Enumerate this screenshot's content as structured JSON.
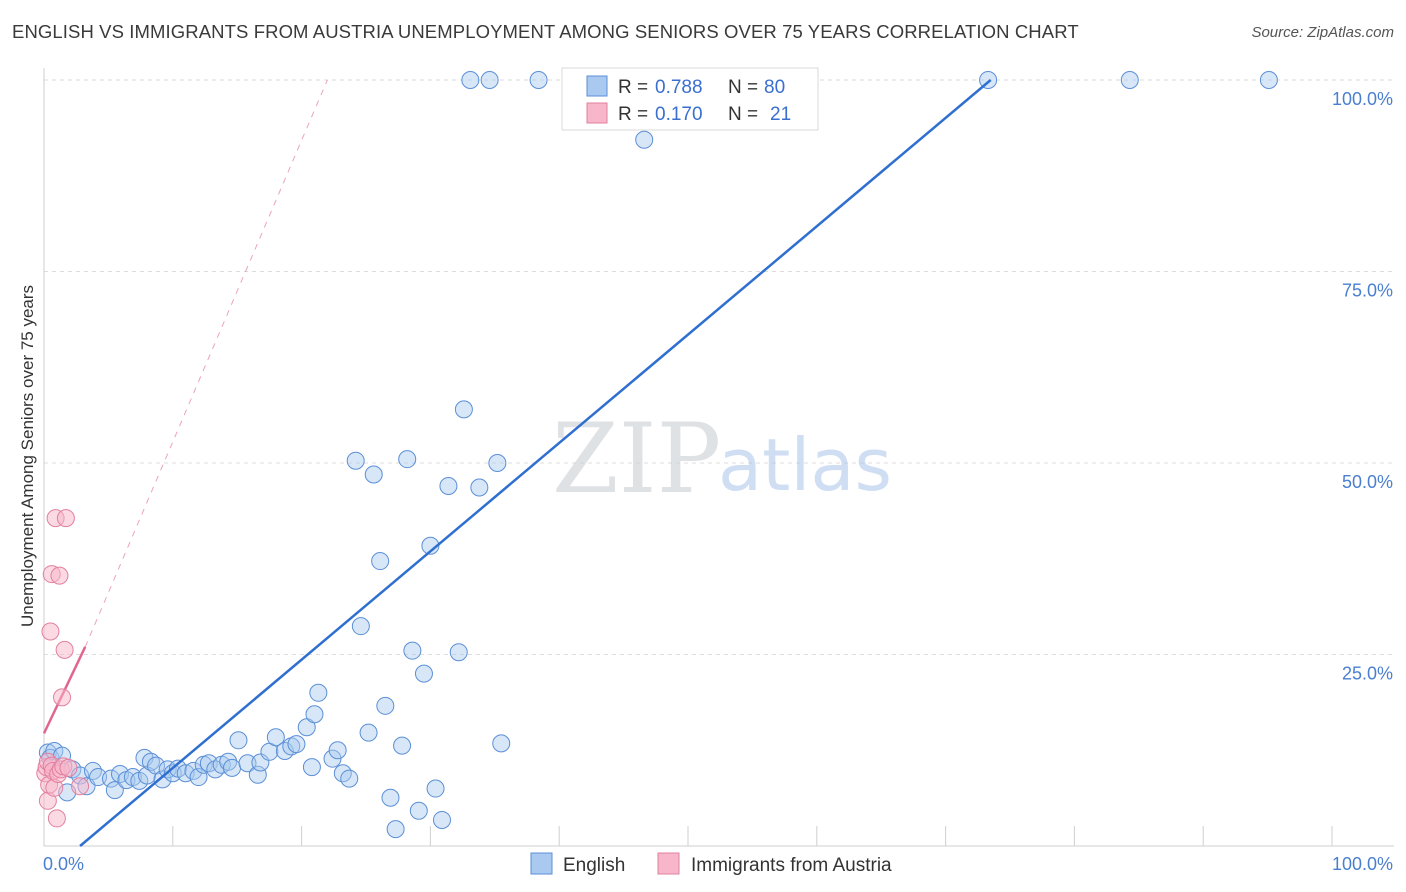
{
  "header": {
    "title": "ENGLISH VS IMMIGRANTS FROM AUSTRIA UNEMPLOYMENT AMONG SENIORS OVER 75 YEARS CORRELATION CHART",
    "source": "Source: ZipAtlas.com"
  },
  "watermark": {
    "zip": "ZIP",
    "atlas": "atlas"
  },
  "legend": {
    "r_label": "R =",
    "n_label": "N =",
    "english": {
      "r": "0.788",
      "n": "80"
    },
    "austria": {
      "r": "0.170",
      "n": "21"
    }
  },
  "bottom_legend": {
    "english": "English",
    "austria": "Immigrants from Austria"
  },
  "colors": {
    "english_fill": "#a9c9f0",
    "english_stroke": "#5b8fd6",
    "english_line": "#2f6fd0",
    "austria_fill": "#f7b6c9",
    "austria_stroke": "#e2809f",
    "austria_line": "#e0668e",
    "grid": "#dcdcdc"
  },
  "chart_data": {
    "type": "scatter",
    "title": "ENGLISH VS IMMIGRANTS FROM AUSTRIA UNEMPLOYMENT AMONG SENIORS OVER 75 YEARS CORRELATION CHART",
    "xlabel": "",
    "ylabel": "Unemployment Among Seniors over 75 years",
    "xlim": [
      0,
      100
    ],
    "ylim": [
      0,
      100
    ],
    "x_tick_labels": [
      "0.0%",
      "100.0%"
    ],
    "y_ticks": [
      25,
      50,
      75,
      100
    ],
    "y_tick_labels": [
      "25.0%",
      "50.0%",
      "75.0%",
      "100.0%"
    ],
    "grid": true,
    "legend_position": "top-center",
    "series": [
      {
        "name": "English",
        "r": 0.788,
        "n": 80,
        "trendline": {
          "x": [
            2.8,
            73.5
          ],
          "y": [
            0,
            100
          ]
        },
        "points": [
          [
            0.3,
            12.2
          ],
          [
            0.5,
            11.5
          ],
          [
            0.8,
            12.4
          ],
          [
            1.4,
            11.8
          ],
          [
            1.8,
            7.0
          ],
          [
            2.2,
            10.0
          ],
          [
            2.8,
            9.2
          ],
          [
            3.3,
            7.8
          ],
          [
            3.8,
            9.8
          ],
          [
            4.2,
            9.0
          ],
          [
            5.2,
            8.8
          ],
          [
            5.5,
            7.3
          ],
          [
            5.9,
            9.4
          ],
          [
            6.4,
            8.6
          ],
          [
            6.9,
            9.0
          ],
          [
            7.4,
            8.5
          ],
          [
            7.8,
            11.5
          ],
          [
            8.0,
            9.2
          ],
          [
            8.3,
            11.0
          ],
          [
            8.7,
            10.5
          ],
          [
            9.2,
            8.7
          ],
          [
            9.6,
            10.0
          ],
          [
            10.0,
            9.5
          ],
          [
            10.4,
            10.1
          ],
          [
            11.0,
            9.5
          ],
          [
            11.6,
            9.8
          ],
          [
            12.0,
            9.0
          ],
          [
            12.4,
            10.6
          ],
          [
            12.8,
            10.8
          ],
          [
            13.3,
            10.0
          ],
          [
            13.8,
            10.6
          ],
          [
            14.3,
            11.0
          ],
          [
            14.6,
            10.2
          ],
          [
            15.1,
            13.8
          ],
          [
            15.8,
            10.8
          ],
          [
            16.6,
            9.3
          ],
          [
            16.8,
            10.9
          ],
          [
            17.5,
            12.3
          ],
          [
            18.0,
            14.2
          ],
          [
            18.7,
            12.4
          ],
          [
            19.2,
            13.0
          ],
          [
            19.6,
            13.3
          ],
          [
            20.4,
            15.5
          ],
          [
            20.8,
            10.3
          ],
          [
            21.0,
            17.2
          ],
          [
            21.3,
            20.0
          ],
          [
            22.4,
            11.4
          ],
          [
            22.8,
            12.5
          ],
          [
            23.2,
            9.5
          ],
          [
            23.7,
            8.8
          ],
          [
            24.2,
            50.3
          ],
          [
            24.6,
            28.7
          ],
          [
            25.2,
            14.8
          ],
          [
            25.6,
            48.5
          ],
          [
            26.1,
            37.2
          ],
          [
            26.5,
            18.3
          ],
          [
            26.9,
            6.3
          ],
          [
            27.3,
            2.2
          ],
          [
            27.8,
            13.1
          ],
          [
            28.2,
            50.5
          ],
          [
            28.6,
            25.5
          ],
          [
            29.1,
            4.6
          ],
          [
            29.5,
            22.5
          ],
          [
            30.0,
            39.2
          ],
          [
            30.4,
            7.5
          ],
          [
            30.9,
            3.4
          ],
          [
            31.4,
            47.0
          ],
          [
            32.2,
            25.3
          ],
          [
            32.6,
            57.0
          ],
          [
            33.1,
            100
          ],
          [
            33.8,
            46.8
          ],
          [
            34.6,
            100
          ],
          [
            35.2,
            50.0
          ],
          [
            35.5,
            13.4
          ],
          [
            38.4,
            100
          ],
          [
            46.6,
            92.2
          ],
          [
            58.3,
            100
          ],
          [
            73.3,
            100
          ],
          [
            84.3,
            100
          ],
          [
            95.1,
            100
          ]
        ]
      },
      {
        "name": "Immigrants from Austria",
        "r": 0.17,
        "n": 21,
        "trendline": {
          "x": [
            0,
            3.2
          ],
          "y": [
            14.7,
            26.0
          ]
        },
        "trendline_dashed": {
          "x": [
            3.2,
            22.0
          ],
          "y": [
            26.0,
            100
          ]
        },
        "points": [
          [
            0.1,
            9.5
          ],
          [
            0.2,
            10.3
          ],
          [
            0.3,
            5.9
          ],
          [
            0.3,
            11.0
          ],
          [
            0.4,
            8.0
          ],
          [
            0.5,
            28.0
          ],
          [
            0.6,
            10.5
          ],
          [
            0.6,
            35.5
          ],
          [
            0.7,
            9.8
          ],
          [
            0.8,
            7.6
          ],
          [
            0.9,
            42.8
          ],
          [
            1.0,
            3.6
          ],
          [
            1.1,
            9.4
          ],
          [
            1.2,
            35.3
          ],
          [
            1.3,
            10.0
          ],
          [
            1.4,
            19.4
          ],
          [
            1.5,
            10.4
          ],
          [
            1.6,
            25.6
          ],
          [
            1.7,
            42.8
          ],
          [
            1.9,
            10.2
          ],
          [
            2.8,
            7.8
          ]
        ]
      }
    ]
  }
}
